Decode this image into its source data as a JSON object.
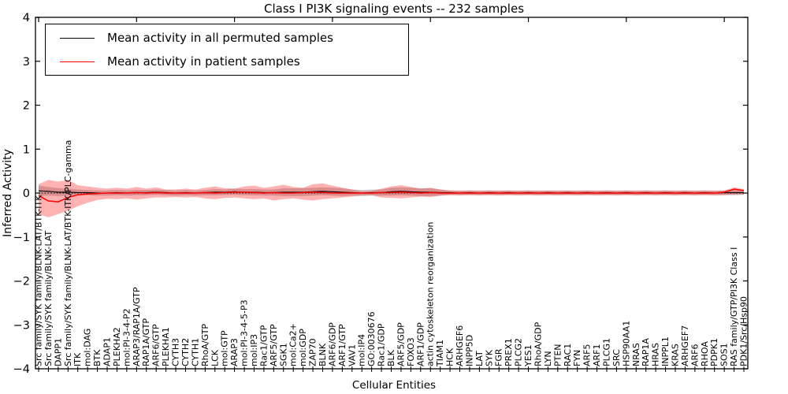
{
  "title": "Class I PI3K signaling events -- 232 samples",
  "axes": {
    "ylabel": "Inferred Activity",
    "xlabel": "Cellular Entities",
    "ytick_labels": [
      "4",
      "3",
      "2",
      "1",
      "0",
      "−1",
      "−2",
      "−3",
      "−4"
    ],
    "ytick_values": [
      4,
      3,
      2,
      1,
      0,
      -1,
      -2,
      -3,
      -4
    ],
    "ylim": [
      -4,
      4
    ]
  },
  "legend": {
    "entries": [
      {
        "label": "Mean activity in all permuted samples",
        "color": "#000000"
      },
      {
        "label": "Mean activity in patient samples",
        "color": "#ff0000"
      }
    ],
    "position": "upper-left"
  },
  "chart_data": {
    "type": "line",
    "title": "Class I PI3K signaling events -- 232 samples",
    "xlabel": "Cellular Entities",
    "ylabel": "Inferred Activity",
    "ylim": [
      -4,
      4
    ],
    "grid": false,
    "zero_line_dotted": true,
    "categories": [
      "Src family/SYK family/BLNK-LAT/BTK-ITK",
      "Src family/SYK family/BLNK-LAT",
      "DAPP1",
      "Src family/SYK family/BLNK-LAT/BTK-ITK/PLC-gamma",
      "ITK",
      "mol:DAG",
      "BTK",
      "ADAP1",
      "PLEKHA2",
      "mol:PI-3-4-P2",
      "ARAP3/RAP1A/GTP",
      "RAP1A/GTP",
      "ARF6/GTP",
      "PLEKHA1",
      "CYTH3",
      "CYTH2",
      "CYTH1",
      "RhoA/GTP",
      "LCK",
      "mol:GTP",
      "ARAP3",
      "mol:PI-3-4-5-P3",
      "mol:IP3",
      "Rac1/GTP",
      "ARF5/GTP",
      "SGK1",
      "mol:Ca2+",
      "mol:GDP",
      "ZAP70",
      "BLNK",
      "ARF6/GDP",
      "ARF1/GTP",
      "VAV1",
      "mol:IP4",
      "GO:0030676",
      "Rac1/GDP",
      "BLK",
      "ARF5/GDP",
      "FOXO3",
      "ARF1/GDP",
      "actin cytoskeleton reorganization",
      "TIAM1",
      "HCK",
      "ARHGEF6",
      "INPP5D",
      "LAT",
      "SYK",
      "FGR",
      "PREX1",
      "PLCG2",
      "YES1",
      "RhoA/GDP",
      "LYN",
      "PTEN",
      "RAC1",
      "FYN",
      "ARF5",
      "ARF1",
      "PLCG1",
      "SRC",
      "HSP90AA1",
      "NRAS",
      "RAP1A",
      "HRAS",
      "INPPL1",
      "KRAS",
      "ARHGEF7",
      "ARF6",
      "RHOA",
      "PDPK1",
      "SOS1",
      "RAS family/GTP/PI3K Class I",
      "PDK1/Src/Hsp90"
    ],
    "series": [
      {
        "name": "Mean activity in all permuted samples",
        "color": "#000000",
        "values": [
          0.05,
          0.04,
          0.02,
          0.02,
          0.01,
          0.01,
          0,
          0,
          0.01,
          0,
          0.01,
          0.01,
          0.02,
          0.01,
          0,
          0.01,
          0,
          0.01,
          0.02,
          0.02,
          0.03,
          0.02,
          0.02,
          0.01,
          0.01,
          0.02,
          0.02,
          0.02,
          0.03,
          0.04,
          0.03,
          0.02,
          0.01,
          0,
          0.01,
          0.01,
          0.03,
          0.04,
          0.03,
          0.02,
          0.02,
          0.01,
          0.01,
          0,
          0.01,
          0,
          0.01,
          0,
          0.01,
          0,
          0.01,
          0,
          0.01,
          0,
          0.01,
          0,
          0.01,
          0,
          0.01,
          0,
          0.01,
          0,
          0.01,
          0,
          0.01,
          0,
          0.01,
          0,
          0.01,
          0,
          0.01,
          0.01,
          0.01
        ]
      },
      {
        "name": "Mean activity in patient samples",
        "color": "#ff0000",
        "values": [
          -0.06,
          -0.18,
          -0.2,
          -0.1,
          -0.04,
          -0.02,
          -0.01,
          0,
          0,
          0,
          0.01,
          0,
          0.01,
          0,
          0,
          0,
          0,
          0.01,
          0,
          0.01,
          0.02,
          0.02,
          0.01,
          0,
          0.01,
          0,
          0,
          0.01,
          0.02,
          0.01,
          0,
          0,
          0,
          0,
          0,
          0.01,
          0.01,
          0.02,
          0.01,
          0,
          0.01,
          0,
          0,
          0,
          0,
          0,
          0,
          0,
          0,
          0,
          0,
          0,
          0,
          0,
          0,
          0,
          0,
          0,
          0,
          0,
          0,
          0,
          0,
          0,
          0,
          0,
          0,
          0,
          0,
          0,
          0.02,
          0.09,
          0.06
        ]
      }
    ],
    "bands": [
      {
        "name": "patient-std-band",
        "color": "rgba(255,0,0,0.30)",
        "upper": [
          0.2,
          0.3,
          0.26,
          0.3,
          0.18,
          0.15,
          0.12,
          0.1,
          0.12,
          0.1,
          0.14,
          0.1,
          0.13,
          0.08,
          0.08,
          0.1,
          0.08,
          0.12,
          0.15,
          0.11,
          0.1,
          0.15,
          0.17,
          0.12,
          0.15,
          0.19,
          0.14,
          0.12,
          0.2,
          0.22,
          0.17,
          0.12,
          0.08,
          0.04,
          0.05,
          0.1,
          0.15,
          0.18,
          0.14,
          0.1,
          0.12,
          0.08,
          0.06,
          0.06,
          0.06,
          0.06,
          0.06,
          0.06,
          0.06,
          0.06,
          0.06,
          0.06,
          0.06,
          0.06,
          0.06,
          0.06,
          0.06,
          0.06,
          0.06,
          0.06,
          0.06,
          0.06,
          0.06,
          0.06,
          0.06,
          0.06,
          0.06,
          0.06,
          0.06,
          0.06,
          0.06,
          0.13,
          0.09
        ],
        "lower": [
          -0.48,
          -0.55,
          -0.48,
          -0.4,
          -0.3,
          -0.22,
          -0.16,
          -0.13,
          -0.14,
          -0.12,
          -0.15,
          -0.12,
          -0.1,
          -0.1,
          -0.09,
          -0.1,
          -0.09,
          -0.12,
          -0.14,
          -0.11,
          -0.1,
          -0.12,
          -0.14,
          -0.12,
          -0.17,
          -0.14,
          -0.12,
          -0.15,
          -0.17,
          -0.14,
          -0.12,
          -0.1,
          -0.08,
          -0.05,
          -0.05,
          -0.1,
          -0.11,
          -0.12,
          -0.1,
          -0.08,
          -0.09,
          -0.06,
          -0.05,
          -0.05,
          -0.05,
          -0.05,
          -0.05,
          -0.05,
          -0.05,
          -0.05,
          -0.05,
          -0.05,
          -0.05,
          -0.05,
          -0.05,
          -0.05,
          -0.05,
          -0.05,
          -0.05,
          -0.05,
          -0.05,
          -0.05,
          -0.05,
          -0.05,
          -0.05,
          -0.05,
          -0.05,
          -0.05,
          -0.05,
          -0.05,
          -0.05,
          -0.03,
          -0.03
        ]
      },
      {
        "name": "permuted-std-band",
        "color": "rgba(110,110,110,0.35)",
        "center_series": 0,
        "halfwidth": [
          0.12,
          0.1,
          0.09,
          0.08,
          0.07,
          0.06,
          0.06,
          0.06,
          0.06,
          0.06,
          0.06,
          0.06,
          0.06,
          0.06,
          0.06,
          0.06,
          0.06,
          0.06,
          0.07,
          0.06,
          0.07,
          0.07,
          0.07,
          0.07,
          0.07,
          0.09,
          0.09,
          0.09,
          0.09,
          0.09,
          0.09,
          0.09,
          0.07,
          0.07,
          0.07,
          0.07,
          0.09,
          0.09,
          0.09,
          0.09,
          0.09,
          0.07,
          0.05,
          0.05,
          0.05,
          0.05,
          0.05,
          0.05,
          0.05,
          0.05,
          0.05,
          0.05,
          0.05,
          0.05,
          0.05,
          0.05,
          0.05,
          0.05,
          0.05,
          0.05,
          0.05,
          0.05,
          0.05,
          0.05,
          0.05,
          0.05,
          0.05,
          0.05,
          0.05,
          0.05,
          0.05,
          0.06,
          0.05
        ]
      }
    ],
    "top_major_tick_every": 10
  }
}
